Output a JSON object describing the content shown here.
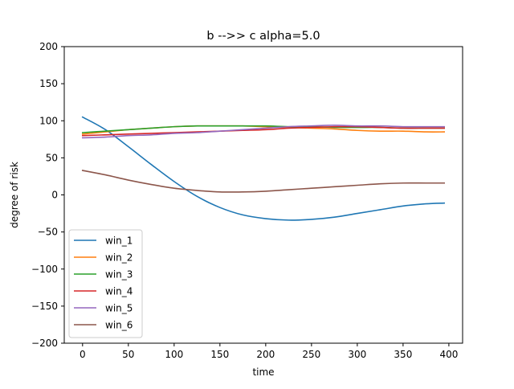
{
  "chart_data": {
    "type": "line",
    "title": "b -->> c  alpha=5.0",
    "xlabel": "time",
    "ylabel": "degree of risk",
    "xlim": [
      -20,
      415
    ],
    "ylim": [
      -200,
      200
    ],
    "xticks": [
      0,
      50,
      100,
      150,
      200,
      250,
      300,
      350,
      400
    ],
    "yticks": [
      -200,
      -150,
      -100,
      -50,
      0,
      50,
      100,
      150,
      200
    ],
    "grid": false,
    "legend_position": "lower-left",
    "x": [
      0,
      25,
      50,
      75,
      100,
      125,
      150,
      175,
      200,
      225,
      250,
      275,
      300,
      325,
      350,
      375,
      395
    ],
    "series": [
      {
        "name": "win_1",
        "color": "#1f77b4",
        "values": [
          105,
          88,
          65,
          41,
          18,
          -2,
          -17,
          -27,
          -32,
          -34,
          -33,
          -30,
          -25,
          -20,
          -15,
          -12,
          -11
        ]
      },
      {
        "name": "win_2",
        "color": "#ff7f0e",
        "values": [
          82,
          85,
          88,
          90,
          92,
          93,
          93,
          93,
          92,
          91,
          90,
          89,
          87,
          86,
          86,
          85,
          85
        ]
      },
      {
        "name": "win_3",
        "color": "#2ca02c",
        "values": [
          84,
          86,
          88,
          90,
          92,
          93,
          93,
          93,
          93,
          92,
          92,
          91,
          91,
          91,
          90,
          90,
          90
        ]
      },
      {
        "name": "win_4",
        "color": "#d62728",
        "values": [
          80,
          81,
          82,
          83,
          84,
          85,
          86,
          87,
          88,
          90,
          91,
          92,
          92,
          91,
          90,
          90,
          90
        ]
      },
      {
        "name": "win_5",
        "color": "#9467bd",
        "values": [
          77,
          78,
          80,
          81,
          83,
          84,
          86,
          88,
          90,
          92,
          93,
          94,
          93,
          93,
          92,
          92,
          92
        ]
      },
      {
        "name": "win_6",
        "color": "#8c564b",
        "values": [
          33,
          27,
          20,
          14,
          9,
          6,
          4,
          4,
          5,
          7,
          9,
          11,
          13,
          15,
          16,
          16,
          16
        ]
      }
    ]
  }
}
